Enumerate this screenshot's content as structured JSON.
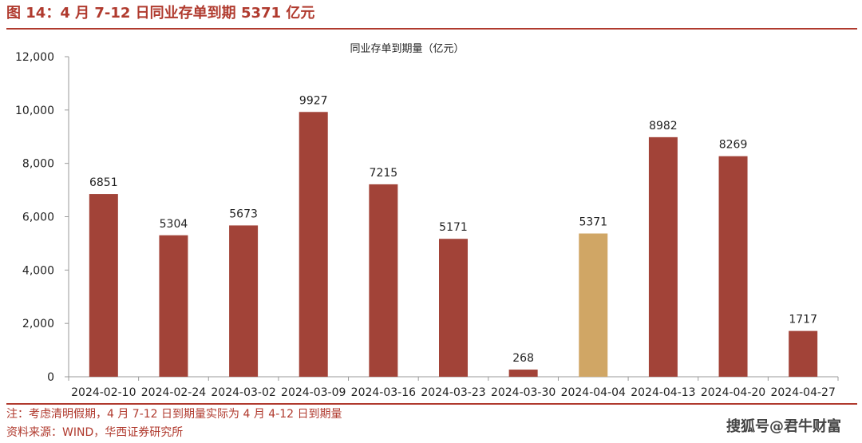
{
  "figure": {
    "title": "图 14：4 月 7-12 日同业存单到期 5371 亿元",
    "note": "注：考虑清明假期，4 月 7-12 日到期量实际为 4 月 4-12 日到期量",
    "source": "资料来源：WIND，华西证券研究所",
    "watermark": "搜狐号@君牛财富"
  },
  "colors": {
    "accent": "#b03a2e",
    "bar": "#a24338",
    "highlight": "#d0a665",
    "axis": "#999999",
    "text": "#222222"
  },
  "chart_data": {
    "type": "bar",
    "title": "同业存单到期量（亿元）",
    "xlabel": "",
    "ylabel": "",
    "categories": [
      "2024-02-10",
      "2024-02-24",
      "2024-03-02",
      "2024-03-09",
      "2024-03-16",
      "2024-03-23",
      "2024-03-30",
      "2024-04-04",
      "2024-04-13",
      "2024-04-20",
      "2024-04-27"
    ],
    "values": [
      6851,
      5304,
      5673,
      9927,
      7215,
      5171,
      268,
      5371,
      8982,
      8269,
      1717
    ],
    "data_labels": [
      "6851",
      "5304",
      "5673",
      "9927",
      "7215",
      "5171",
      "268",
      "5371",
      "8982",
      "8269",
      "1717"
    ],
    "highlight_category": "2024-04-04",
    "ylim": [
      0,
      12000
    ],
    "y_ticks": [
      0,
      2000,
      4000,
      6000,
      8000,
      10000,
      12000
    ],
    "y_tick_labels": [
      "0",
      "2,000",
      "4,000",
      "6,000",
      "8,000",
      "10,000",
      "12,000"
    ],
    "grid": false,
    "legend": "none"
  }
}
